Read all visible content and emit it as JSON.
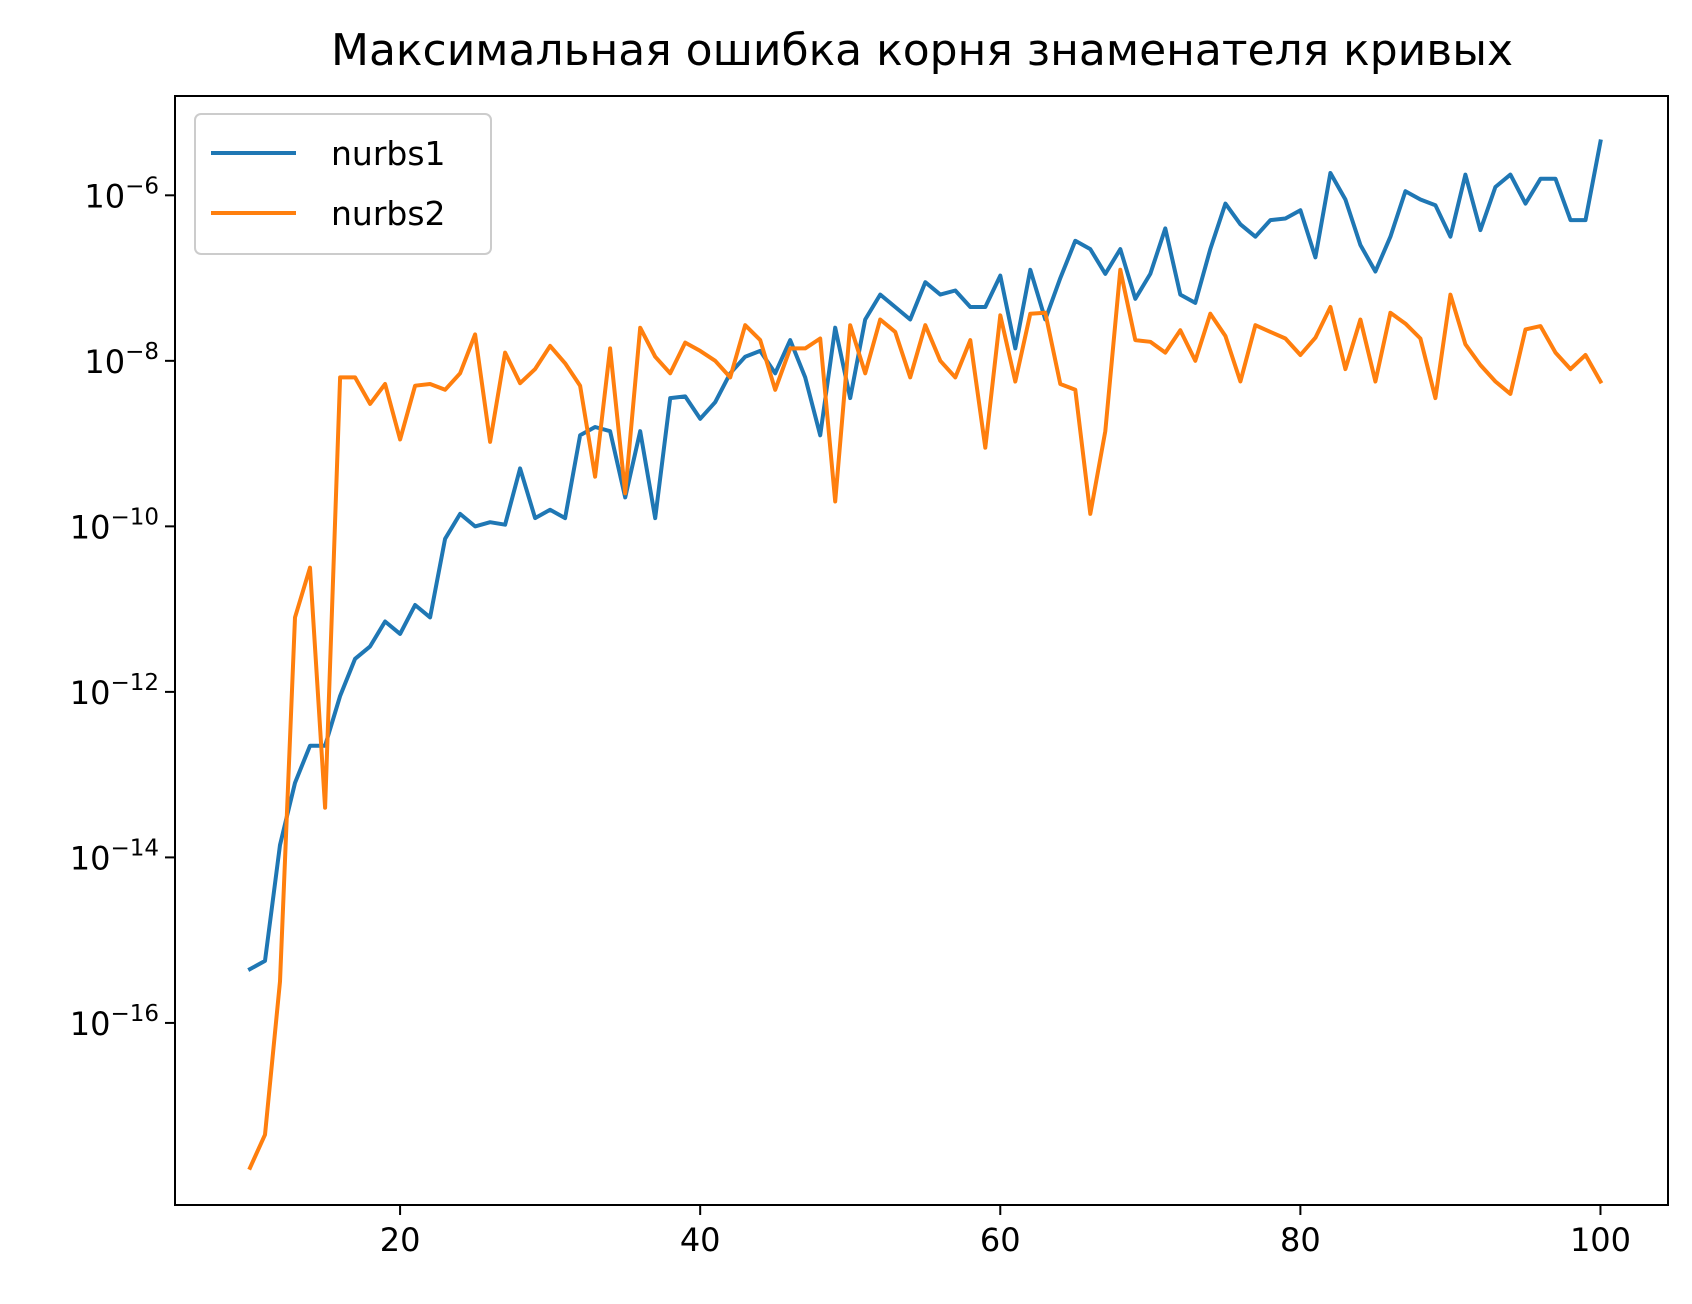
{
  "chart_data": {
    "type": "line",
    "title": "Максимальная ошибка корня знаменателя кривых",
    "xlabel": "",
    "ylabel": "",
    "xlim": [
      5,
      104.5
    ],
    "ylim_log10": [
      -18.2,
      -4.8
    ],
    "yscale": "log",
    "x_ticks": [
      20,
      40,
      60,
      80,
      100
    ],
    "y_ticks": [
      {
        "base": "10",
        "exp": "−16",
        "log10": -16
      },
      {
        "base": "10",
        "exp": "−14",
        "log10": -14
      },
      {
        "base": "10",
        "exp": "−12",
        "log10": -12
      },
      {
        "base": "10",
        "exp": "−10",
        "log10": -10
      },
      {
        "base": "10",
        "exp": "−8",
        "log10": -8
      },
      {
        "base": "10",
        "exp": "−6",
        "log10": -6
      }
    ],
    "grid": false,
    "legend_position": "top-left",
    "x": [
      10,
      11,
      12,
      13,
      14,
      15,
      16,
      17,
      18,
      19,
      20,
      21,
      22,
      23,
      24,
      25,
      26,
      27,
      28,
      29,
      30,
      31,
      32,
      33,
      34,
      35,
      36,
      37,
      38,
      39,
      40,
      41,
      42,
      43,
      44,
      45,
      46,
      47,
      48,
      49,
      50,
      51,
      52,
      53,
      54,
      55,
      56,
      57,
      58,
      59,
      60,
      61,
      62,
      63,
      64,
      65,
      66,
      67,
      68,
      69,
      70,
      71,
      72,
      73,
      74,
      75,
      76,
      77,
      78,
      79,
      80,
      81,
      82,
      83,
      84,
      85,
      86,
      87,
      88,
      89,
      90,
      91,
      92,
      93,
      94,
      95,
      96,
      97,
      98,
      99,
      100
    ],
    "series": [
      {
        "name": "nurbs1",
        "color": "#1f77b4",
        "log10_values": [
          -15.35,
          -15.25,
          -13.85,
          -13.1,
          -12.65,
          -12.65,
          -12.05,
          -11.6,
          -11.45,
          -11.15,
          -11.3,
          -10.95,
          -11.1,
          -10.15,
          -9.85,
          -10.0,
          -9.95,
          -9.98,
          -9.3,
          -9.9,
          -9.8,
          -9.9,
          -8.9,
          -8.8,
          -8.85,
          -9.65,
          -8.85,
          -9.9,
          -8.45,
          -8.43,
          -8.7,
          -8.5,
          -8.15,
          -7.95,
          -7.88,
          -8.15,
          -7.75,
          -8.2,
          -8.9,
          -7.6,
          -8.45,
          -7.5,
          -7.2,
          -7.35,
          -7.5,
          -7.05,
          -7.2,
          -7.15,
          -7.35,
          -7.35,
          -6.97,
          -7.85,
          -6.9,
          -7.5,
          -7.0,
          -6.55,
          -6.65,
          -6.95,
          -6.65,
          -7.25,
          -6.95,
          -6.4,
          -7.2,
          -7.3,
          -6.65,
          -6.1,
          -6.35,
          -6.5,
          -6.3,
          -6.28,
          -6.18,
          -6.75,
          -5.73,
          -6.05,
          -6.6,
          -6.92,
          -6.5,
          -5.95,
          -6.05,
          -6.12,
          -6.5,
          -5.75,
          -6.42,
          -5.9,
          -5.75,
          -6.1,
          -5.8,
          -5.8,
          -6.3,
          -6.3,
          -5.35
        ]
      },
      {
        "name": "nurbs2",
        "color": "#ff7f0e",
        "log10_values": [
          -17.75,
          -17.35,
          -15.5,
          -11.1,
          -10.5,
          -13.4,
          -8.2,
          -8.2,
          -8.52,
          -8.28,
          -8.95,
          -8.3,
          -8.28,
          -8.35,
          -8.15,
          -7.68,
          -8.98,
          -7.9,
          -8.27,
          -8.1,
          -7.82,
          -8.03,
          -8.3,
          -9.4,
          -7.85,
          -9.6,
          -7.6,
          -7.95,
          -8.15,
          -7.78,
          -7.88,
          -8.0,
          -8.2,
          -7.57,
          -7.75,
          -8.35,
          -7.85,
          -7.85,
          -7.73,
          -9.7,
          -7.57,
          -8.15,
          -7.5,
          -7.65,
          -8.2,
          -7.57,
          -8.0,
          -8.2,
          -7.75,
          -9.05,
          -7.45,
          -8.25,
          -7.43,
          -7.42,
          -8.28,
          -8.35,
          -9.85,
          -8.85,
          -6.9,
          -7.75,
          -7.77,
          -7.9,
          -7.63,
          -8.0,
          -7.43,
          -7.7,
          -8.25,
          -7.57,
          -7.65,
          -7.73,
          -7.93,
          -7.72,
          -7.35,
          -8.1,
          -7.5,
          -8.25,
          -7.42,
          -7.55,
          -7.73,
          -8.45,
          -7.2,
          -7.8,
          -8.05,
          -8.25,
          -8.4,
          -7.62,
          -7.58,
          -7.9,
          -8.1,
          -7.93,
          -8.25
        ]
      }
    ]
  }
}
